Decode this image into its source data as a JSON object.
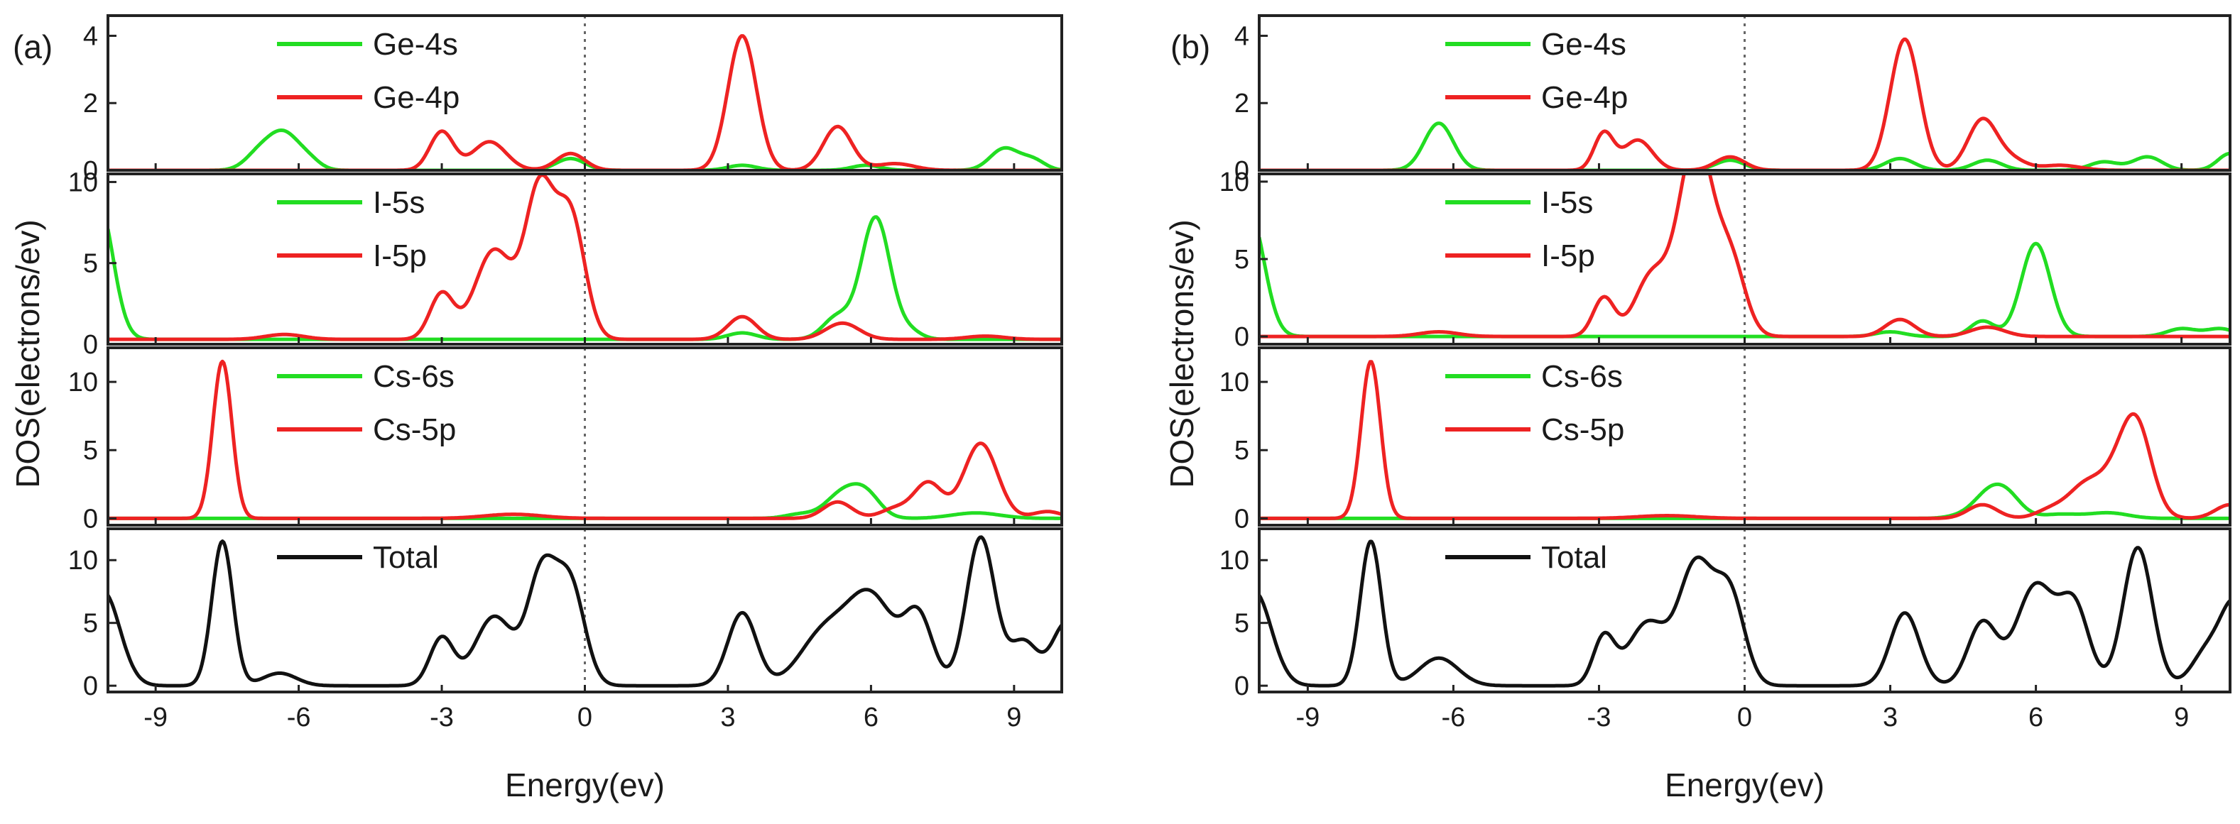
{
  "figure": {
    "colors": {
      "s": "#22dd22",
      "p": "#ee2222",
      "total": "#111111",
      "frame": "#222222",
      "fermi": "#666666"
    },
    "panels": [
      {
        "tag": "(a)",
        "xlabel": "Energy(ev)",
        "ylabel": "DOS(electrons/ev)"
      },
      {
        "tag": "(b)",
        "xlabel": "Energy(ev)",
        "ylabel": "DOS(electrons/ev)"
      }
    ]
  },
  "chart_data": [
    {
      "type": "line",
      "title": "(a)",
      "xlabel": "Energy(ev)",
      "ylabel": "DOS(electrons/ev)",
      "xlim": [
        -10,
        10
      ],
      "xticks": [
        -9,
        -6,
        -3,
        0,
        3,
        6,
        9
      ],
      "fermi_level": 0,
      "subplots": [
        {
          "name": "Ge",
          "ylim": [
            0,
            4.6
          ],
          "yticks": [
            0,
            2,
            4
          ],
          "series": [
            {
              "name": "Ge-4s",
              "color": "#22dd22",
              "peaks": [
                [
                  -6.8,
                  0.55,
                  0.3
                ],
                [
                  -6.3,
                  1.0,
                  0.3
                ],
                [
                  -5.8,
                  0.3,
                  0.25
                ],
                [
                  -0.3,
                  0.35,
                  0.3
                ],
                [
                  3.3,
                  0.15,
                  0.3
                ],
                [
                  5.9,
                  0.15,
                  0.3
                ],
                [
                  8.8,
                  0.65,
                  0.3
                ],
                [
                  9.4,
                  0.3,
                  0.25
                ]
              ]
            },
            {
              "name": "Ge-4p",
              "color": "#ee2222",
              "peaks": [
                [
                  -3.0,
                  1.15,
                  0.25
                ],
                [
                  -2.0,
                  0.85,
                  0.35
                ],
                [
                  -0.3,
                  0.5,
                  0.3
                ],
                [
                  3.3,
                  4.0,
                  0.3
                ],
                [
                  5.3,
                  1.3,
                  0.3
                ],
                [
                  6.5,
                  0.2,
                  0.4
                ]
              ]
            }
          ]
        },
        {
          "name": "I",
          "ylim": [
            0,
            10.5
          ],
          "yticks": [
            0,
            5,
            10
          ],
          "series": [
            {
              "name": "I-5s",
              "color": "#22dd22",
              "baseline": 0.3,
              "peaks": [
                [
                  -10.2,
                  8.5,
                  0.3
                ],
                [
                  3.3,
                  0.4,
                  0.3
                ],
                [
                  5.3,
                  1.4,
                  0.3
                ],
                [
                  6.1,
                  7.5,
                  0.3
                ],
                [
                  6.8,
                  0.5,
                  0.25
                ]
              ]
            },
            {
              "name": "I-5p",
              "color": "#ee2222",
              "baseline": 0.3,
              "peaks": [
                [
                  -6.3,
                  0.3,
                  0.4
                ],
                [
                  -3.0,
                  2.8,
                  0.25
                ],
                [
                  -1.9,
                  5.5,
                  0.4
                ],
                [
                  -0.95,
                  9.0,
                  0.3
                ],
                [
                  -0.3,
                  7.5,
                  0.3
                ],
                [
                  3.3,
                  1.4,
                  0.3
                ],
                [
                  5.4,
                  1.0,
                  0.35
                ],
                [
                  8.4,
                  0.2,
                  0.4
                ]
              ]
            }
          ]
        },
        {
          "name": "Cs",
          "ylim": [
            -0.5,
            12.5
          ],
          "yticks": [
            0,
            5,
            10
          ],
          "series": [
            {
              "name": "Cs-6s",
              "color": "#22dd22",
              "peaks": [
                [
                  4.5,
                  0.3,
                  0.3
                ],
                [
                  5.4,
                  1.8,
                  0.35
                ],
                [
                  5.9,
                  1.6,
                  0.3
                ],
                [
                  8.2,
                  0.4,
                  0.5
                ]
              ]
            },
            {
              "name": "Cs-5p",
              "color": "#ee2222",
              "peaks": [
                [
                  -7.6,
                  11.5,
                  0.2
                ],
                [
                  -1.5,
                  0.3,
                  0.6
                ],
                [
                  5.3,
                  1.2,
                  0.3
                ],
                [
                  6.5,
                  0.7,
                  0.3
                ],
                [
                  7.2,
                  2.6,
                  0.3
                ],
                [
                  8.3,
                  5.5,
                  0.35
                ],
                [
                  9.7,
                  0.5,
                  0.3
                ]
              ]
            }
          ]
        },
        {
          "name": "Total",
          "ylim": [
            -0.5,
            12.5
          ],
          "yticks": [
            0,
            5,
            10
          ],
          "series": [
            {
              "name": "Total",
              "color": "#111111",
              "peaks": [
                [
                  -10.1,
                  7.5,
                  0.35
                ],
                [
                  -7.6,
                  11.5,
                  0.22
                ],
                [
                  -6.4,
                  1.0,
                  0.35
                ],
                [
                  -3.0,
                  3.8,
                  0.25
                ],
                [
                  -1.9,
                  5.5,
                  0.4
                ],
                [
                  -0.9,
                  8.8,
                  0.3
                ],
                [
                  -0.3,
                  7.8,
                  0.3
                ],
                [
                  3.3,
                  5.8,
                  0.3
                ],
                [
                  5.0,
                  4.0,
                  0.5
                ],
                [
                  6.0,
                  7.0,
                  0.5
                ],
                [
                  7.0,
                  5.2,
                  0.3
                ],
                [
                  8.3,
                  11.8,
                  0.3
                ],
                [
                  9.2,
                  3.5,
                  0.3
                ],
                [
                  10.1,
                  5.0,
                  0.3
                ]
              ]
            }
          ]
        }
      ]
    },
    {
      "type": "line",
      "title": "(b)",
      "xlabel": "Energy(ev)",
      "ylabel": "DOS(electrons/ev)",
      "xlim": [
        -10,
        10
      ],
      "xticks": [
        -9,
        -6,
        -3,
        0,
        3,
        6,
        9
      ],
      "fermi_level": 0,
      "subplots": [
        {
          "name": "Ge",
          "ylim": [
            0,
            4.6
          ],
          "yticks": [
            0,
            2,
            4
          ],
          "series": [
            {
              "name": "Ge-4s",
              "color": "#22dd22",
              "peaks": [
                [
                  -6.3,
                  1.4,
                  0.3
                ],
                [
                  -0.3,
                  0.3,
                  0.3
                ],
                [
                  3.2,
                  0.35,
                  0.3
                ],
                [
                  5.0,
                  0.3,
                  0.3
                ],
                [
                  7.4,
                  0.25,
                  0.3
                ],
                [
                  8.3,
                  0.4,
                  0.3
                ],
                [
                  10.0,
                  0.5,
                  0.25
                ]
              ]
            },
            {
              "name": "Ge-4p",
              "color": "#ee2222",
              "peaks": [
                [
                  -2.9,
                  1.1,
                  0.2
                ],
                [
                  -2.2,
                  0.9,
                  0.3
                ],
                [
                  -0.3,
                  0.4,
                  0.3
                ],
                [
                  3.3,
                  3.9,
                  0.3
                ],
                [
                  4.9,
                  1.5,
                  0.3
                ],
                [
                  5.5,
                  0.3,
                  0.3
                ],
                [
                  6.5,
                  0.15,
                  0.4
                ]
              ]
            }
          ]
        },
        {
          "name": "I",
          "ylim": [
            -0.5,
            10.5
          ],
          "yticks": [
            0,
            5,
            10
          ],
          "series": [
            {
              "name": "I-5s",
              "color": "#22dd22",
              "peaks": [
                [
                  -10.2,
                  8.0,
                  0.3
                ],
                [
                  3.0,
                  0.3,
                  0.3
                ],
                [
                  4.9,
                  1.0,
                  0.25
                ],
                [
                  6.0,
                  6.0,
                  0.3
                ],
                [
                  9.0,
                  0.5,
                  0.3
                ],
                [
                  9.8,
                  0.5,
                  0.3
                ]
              ]
            },
            {
              "name": "I-5p",
              "color": "#ee2222",
              "peaks": [
                [
                  -6.3,
                  0.3,
                  0.4
                ],
                [
                  -2.9,
                  2.5,
                  0.22
                ],
                [
                  -1.9,
                  4.0,
                  0.35
                ],
                [
                  -1.2,
                  5.5,
                  0.3
                ],
                [
                  -0.9,
                  8.5,
                  0.3
                ],
                [
                  -0.3,
                  5.0,
                  0.3
                ],
                [
                  3.2,
                  1.1,
                  0.3
                ],
                [
                  5.0,
                  0.6,
                  0.35
                ]
              ]
            }
          ]
        },
        {
          "name": "Cs",
          "ylim": [
            -0.5,
            12.5
          ],
          "yticks": [
            0,
            5,
            10
          ],
          "series": [
            {
              "name": "Cs-6s",
              "color": "#22dd22",
              "peaks": [
                [
                  4.5,
                  0.2,
                  0.3
                ],
                [
                  5.0,
                  1.5,
                  0.3
                ],
                [
                  5.4,
                  1.6,
                  0.3
                ],
                [
                  6.5,
                  0.3,
                  0.4
                ],
                [
                  7.5,
                  0.4,
                  0.4
                ]
              ]
            },
            {
              "name": "Cs-5p",
              "color": "#ee2222",
              "peaks": [
                [
                  -7.7,
                  11.5,
                  0.2
                ],
                [
                  -1.6,
                  0.2,
                  0.6
                ],
                [
                  4.9,
                  1.0,
                  0.3
                ],
                [
                  6.3,
                  0.6,
                  0.3
                ],
                [
                  7.0,
                  2.2,
                  0.35
                ],
                [
                  7.8,
                  3.8,
                  0.4
                ],
                [
                  8.1,
                  4.5,
                  0.3
                ],
                [
                  10.0,
                  1.0,
                  0.3
                ]
              ]
            }
          ]
        },
        {
          "name": "Total",
          "ylim": [
            -0.5,
            12.5
          ],
          "yticks": [
            0,
            5,
            10
          ],
          "series": [
            {
              "name": "Total",
              "color": "#111111",
              "peaks": [
                [
                  -10.1,
                  7.5,
                  0.35
                ],
                [
                  -7.7,
                  11.5,
                  0.22
                ],
                [
                  -6.3,
                  2.2,
                  0.4
                ],
                [
                  -2.9,
                  3.8,
                  0.22
                ],
                [
                  -2.0,
                  5.0,
                  0.4
                ],
                [
                  -1.0,
                  9.5,
                  0.35
                ],
                [
                  -0.3,
                  7.0,
                  0.3
                ],
                [
                  3.3,
                  5.8,
                  0.3
                ],
                [
                  4.9,
                  5.0,
                  0.3
                ],
                [
                  6.0,
                  8.0,
                  0.4
                ],
                [
                  6.8,
                  6.0,
                  0.3
                ],
                [
                  8.1,
                  11.0,
                  0.3
                ],
                [
                  9.5,
                  2.5,
                  0.3
                ],
                [
                  10.1,
                  6.5,
                  0.3
                ]
              ]
            }
          ]
        }
      ]
    }
  ]
}
